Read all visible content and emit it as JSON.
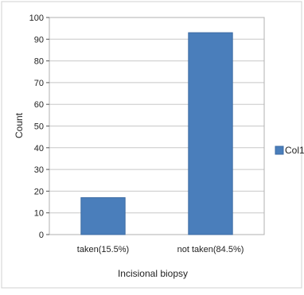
{
  "chart_data": {
    "type": "bar",
    "title": "",
    "xlabel": "Incisional biopsy",
    "ylabel": "Count",
    "categories": [
      "taken(15.5%)",
      "not taken(84.5%)"
    ],
    "series": [
      {
        "name": "Col1",
        "values": [
          17,
          93
        ]
      }
    ],
    "ylim": [
      0,
      100
    ],
    "yticks": [
      "0",
      "10",
      "20",
      "30",
      "40",
      "50",
      "60",
      "70",
      "80",
      "90",
      "100"
    ],
    "grid": true,
    "legend": "right",
    "colors": {
      "bar": "#4a7ebb",
      "bar_edge": "#3b6aa3",
      "grid": "#c8c8c8",
      "frame": "#b0b0b0",
      "axis": "#555555"
    }
  }
}
